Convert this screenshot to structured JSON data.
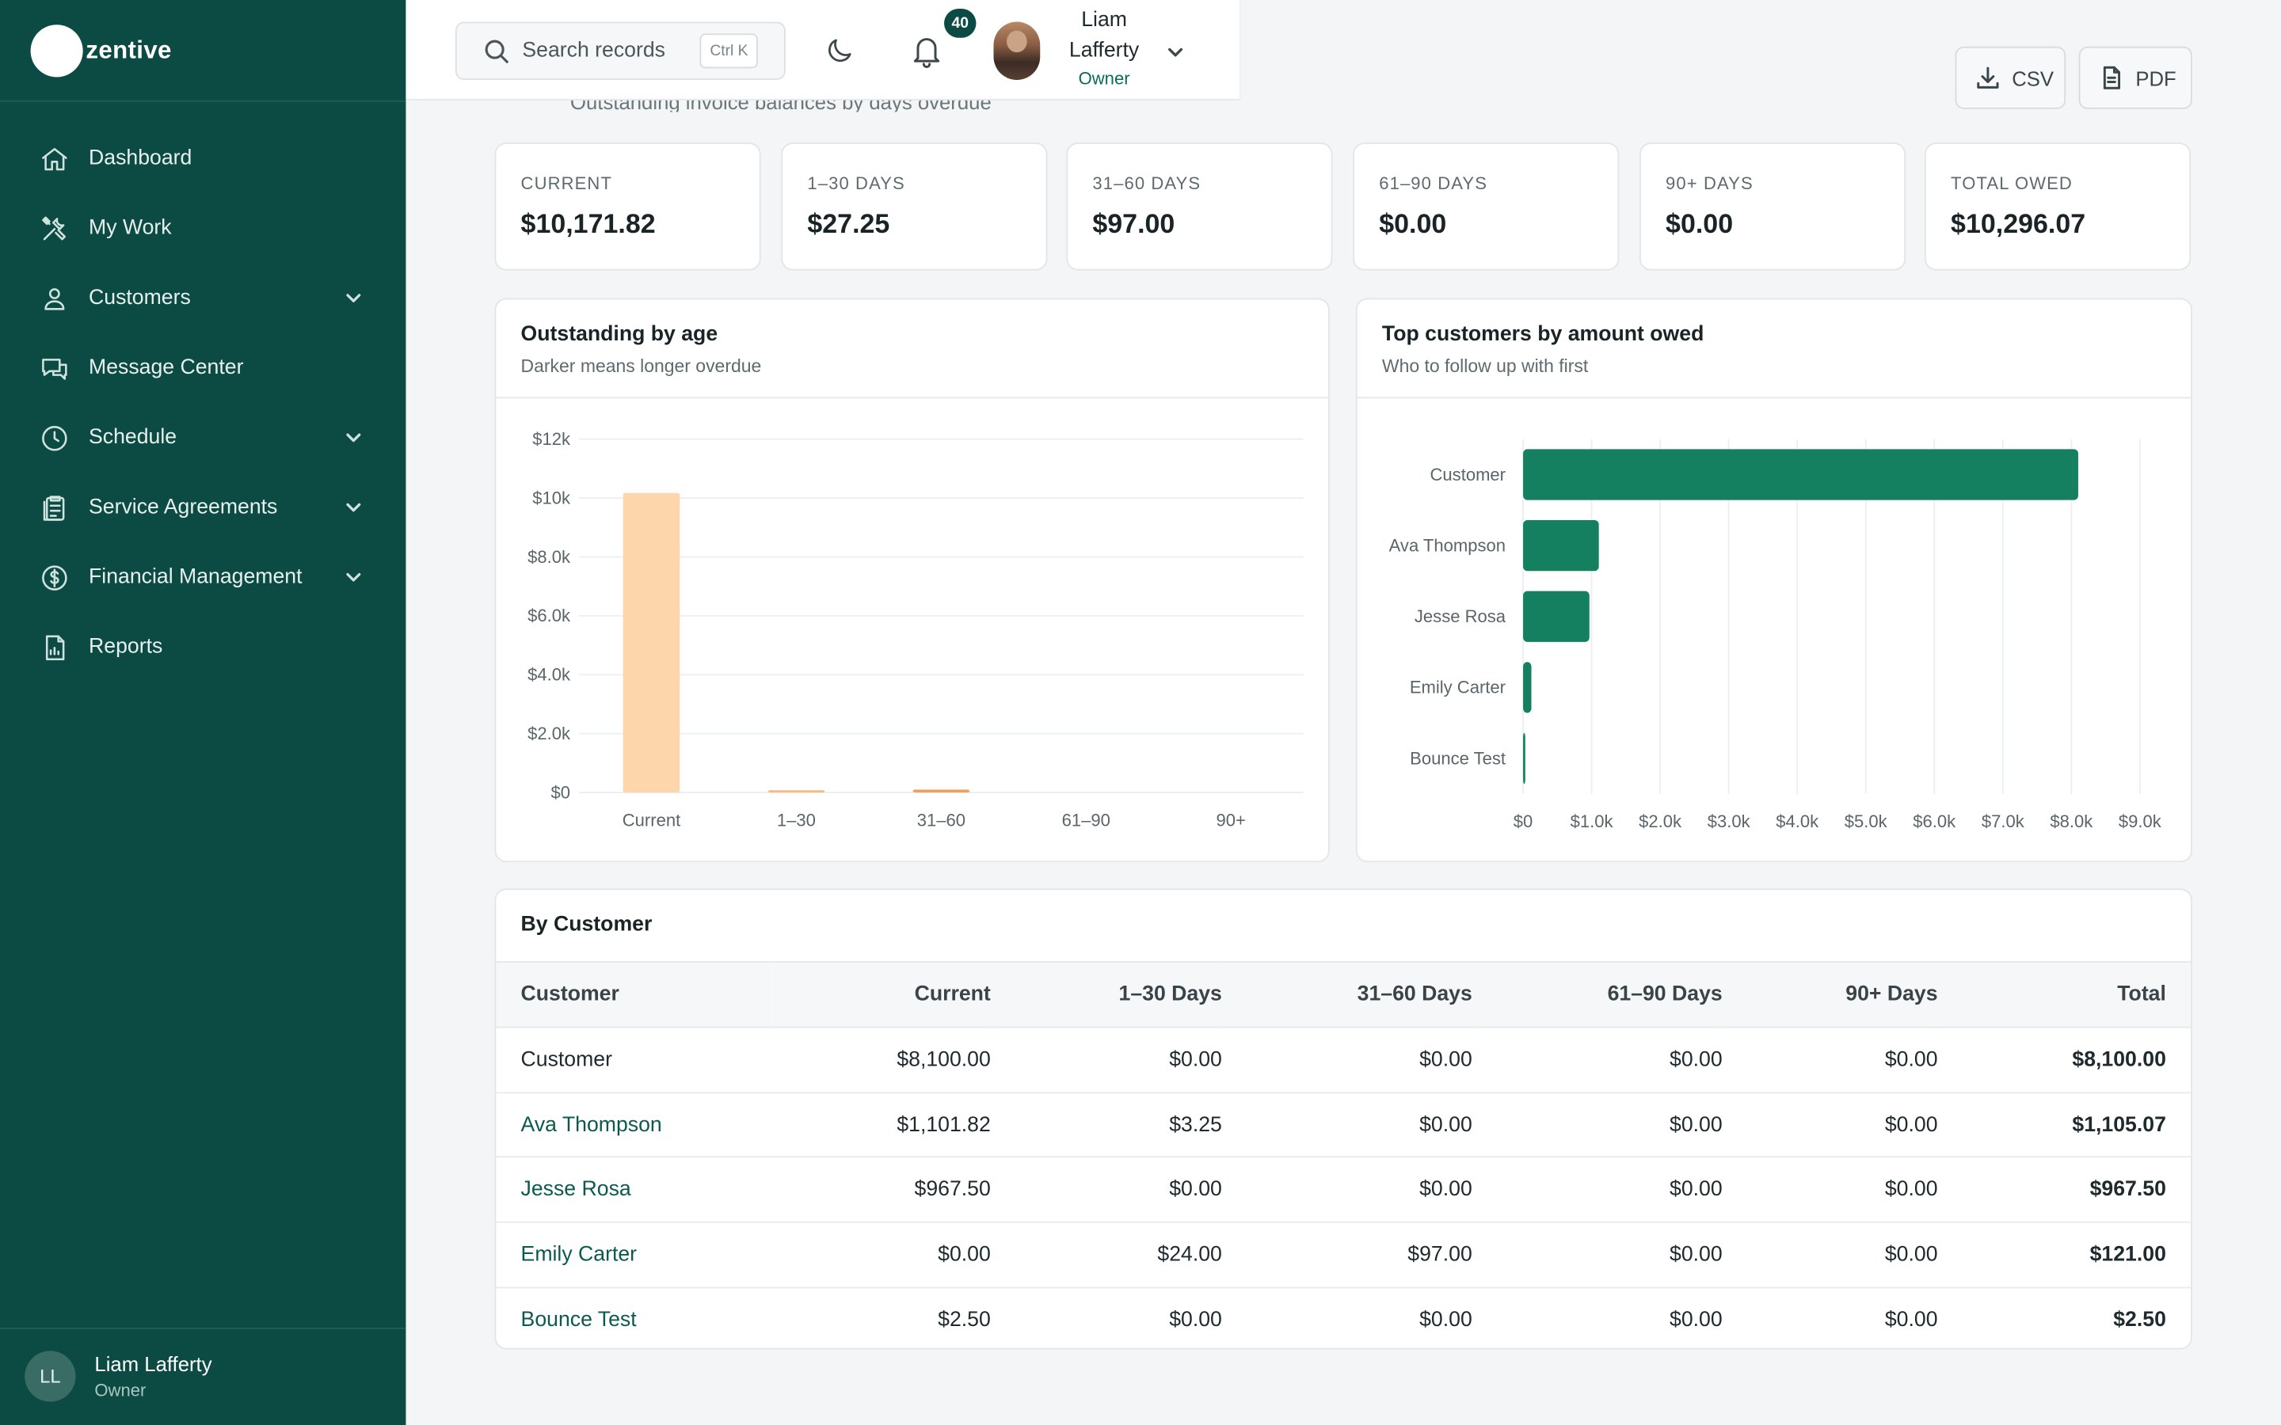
{
  "app": {
    "logo_text": "zentive"
  },
  "sidebar": {
    "items": [
      {
        "label": "Dashboard",
        "icon": "home-icon",
        "has_children": false
      },
      {
        "label": "My Work",
        "icon": "tools-icon",
        "has_children": false
      },
      {
        "label": "Customers",
        "icon": "users-icon",
        "has_children": true
      },
      {
        "label": "Message Center",
        "icon": "chat-icon",
        "has_children": false
      },
      {
        "label": "Schedule",
        "icon": "clock-icon",
        "has_children": true
      },
      {
        "label": "Service Agreements",
        "icon": "clipboard-icon",
        "has_children": true
      },
      {
        "label": "Financial Management",
        "icon": "dollar-icon",
        "has_children": true
      },
      {
        "label": "Reports",
        "icon": "file-icon",
        "has_children": false
      }
    ],
    "user": {
      "initials": "LL",
      "name": "Liam Lafferty",
      "role": "Owner"
    }
  },
  "topbar": {
    "search_placeholder": "Search records",
    "search_shortcut": "Ctrl K",
    "notification_count": "40",
    "user_name": "Liam Lafferty",
    "user_role": "Owner"
  },
  "page": {
    "subtitle": "Outstanding invoice balances by days overdue",
    "export_csv": "CSV",
    "export_pdf": "PDF"
  },
  "kpis": [
    {
      "label": "CURRENT",
      "value": "$10,171.82"
    },
    {
      "label": "1–30 DAYS",
      "value": "$27.25"
    },
    {
      "label": "31–60 DAYS",
      "value": "$97.00"
    },
    {
      "label": "61–90 DAYS",
      "value": "$0.00"
    },
    {
      "label": "90+ DAYS",
      "value": "$0.00"
    },
    {
      "label": "TOTAL OWED",
      "value": "$10,296.07"
    }
  ],
  "chart_data": [
    {
      "type": "bar",
      "title": "Outstanding by age",
      "subtitle": "Darker means longer overdue",
      "categories": [
        "Current",
        "1–30",
        "31–60",
        "61–90",
        "90+"
      ],
      "values": [
        10171.82,
        27.25,
        97.0,
        0,
        0
      ],
      "colors": [
        "#fdd7ab",
        "#f8b97a",
        "#f0a05a",
        "#e07c35",
        "#c35a1c"
      ],
      "ylim": [
        0,
        12000
      ],
      "yticks": [
        0,
        2000,
        4000,
        6000,
        8000,
        10000,
        12000
      ],
      "ytick_labels": [
        "$0",
        "$2.0k",
        "$4.0k",
        "$6.0k",
        "$8.0k",
        "$10k",
        "$12k"
      ],
      "grid": true
    },
    {
      "type": "bar",
      "orientation": "horizontal",
      "title": "Top customers by amount owed",
      "subtitle": "Who to follow up with first",
      "categories": [
        "Customer",
        "Ava Thompson",
        "Jesse Rosa",
        "Emily Carter",
        "Bounce Test"
      ],
      "values": [
        8100.0,
        1105.07,
        967.5,
        121.0,
        2.5
      ],
      "color": "#15805f",
      "xlim": [
        0,
        9000
      ],
      "xticks": [
        0,
        1000,
        2000,
        3000,
        4000,
        5000,
        6000,
        7000,
        8000,
        9000
      ],
      "xtick_labels": [
        "$0",
        "$1.0k",
        "$2.0k",
        "$3.0k",
        "$4.0k",
        "$5.0k",
        "$6.0k",
        "$7.0k",
        "$8.0k",
        "$9.0k"
      ],
      "grid": true
    }
  ],
  "table": {
    "title": "By Customer",
    "columns": [
      "Customer",
      "Current",
      "1–30 Days",
      "31–60 Days",
      "61–90 Days",
      "90+ Days",
      "Total"
    ],
    "rows": [
      [
        "Customer",
        "$8,100.00",
        "$0.00",
        "$0.00",
        "$0.00",
        "$0.00",
        "$8,100.00"
      ],
      [
        "Ava Thompson",
        "$1,101.82",
        "$3.25",
        "$0.00",
        "$0.00",
        "$0.00",
        "$1,105.07"
      ],
      [
        "Jesse Rosa",
        "$967.50",
        "$0.00",
        "$0.00",
        "$0.00",
        "$0.00",
        "$967.50"
      ],
      [
        "Emily Carter",
        "$0.00",
        "$24.00",
        "$97.00",
        "$0.00",
        "$0.00",
        "$121.00"
      ],
      [
        "Bounce Test",
        "$2.50",
        "$0.00",
        "$0.00",
        "$0.00",
        "$0.00",
        "$2.50"
      ]
    ]
  }
}
